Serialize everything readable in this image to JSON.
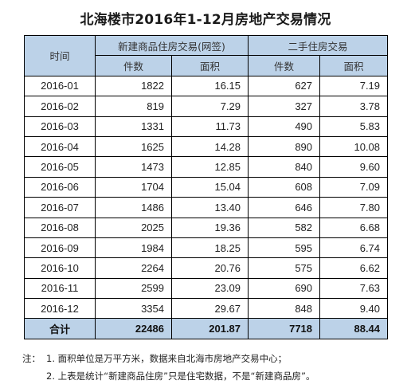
{
  "title": "北海楼市2016年1-12月房地产交易情况",
  "table": {
    "time_header": "时间",
    "new_group_header": "新建商品住房交易(网签)",
    "second_group_header": "二手住房交易",
    "sub_headers": [
      "件数",
      "面积",
      "件数",
      "面积"
    ],
    "rows": [
      {
        "date": "2016-01",
        "new_count": "1822",
        "new_area": "16.15",
        "sec_count": "627",
        "sec_area": "7.19"
      },
      {
        "date": "2016-02",
        "new_count": "819",
        "new_area": "7.29",
        "sec_count": "327",
        "sec_area": "3.78"
      },
      {
        "date": "2016-03",
        "new_count": "1331",
        "new_area": "11.73",
        "sec_count": "490",
        "sec_area": "5.83"
      },
      {
        "date": "2016-04",
        "new_count": "1625",
        "new_area": "14.28",
        "sec_count": "890",
        "sec_area": "10.08"
      },
      {
        "date": "2016-05",
        "new_count": "1473",
        "new_area": "12.85",
        "sec_count": "840",
        "sec_area": "9.60"
      },
      {
        "date": "2016-06",
        "new_count": "1704",
        "new_area": "15.04",
        "sec_count": "608",
        "sec_area": "7.09"
      },
      {
        "date": "2016-07",
        "new_count": "1486",
        "new_area": "13.40",
        "sec_count": "646",
        "sec_area": "7.80"
      },
      {
        "date": "2016-08",
        "new_count": "2025",
        "new_area": "19.36",
        "sec_count": "582",
        "sec_area": "6.68"
      },
      {
        "date": "2016-09",
        "new_count": "1984",
        "new_area": "18.25",
        "sec_count": "595",
        "sec_area": "6.74"
      },
      {
        "date": "2016-10",
        "new_count": "2264",
        "new_area": "20.76",
        "sec_count": "575",
        "sec_area": "6.62"
      },
      {
        "date": "2016-11",
        "new_count": "2599",
        "new_area": "23.09",
        "sec_count": "690",
        "sec_area": "7.63"
      },
      {
        "date": "2016-12",
        "new_count": "3354",
        "new_area": "29.67",
        "sec_count": "848",
        "sec_area": "9.40"
      }
    ],
    "total": {
      "label": "合计",
      "new_count": "22486",
      "new_area": "201.87",
      "sec_count": "7718",
      "sec_area": "88.44"
    }
  },
  "notes": {
    "prefix": "注：",
    "line1": "1. 面积单位是万平方米，数据来自北海市房地产交易中心；",
    "line2": "2. 上表是统计“新建商品住房”只是住宅数据，不是“新建商品房”。"
  },
  "colors": {
    "header_bg": "#bcd2e8",
    "border": "#000000"
  }
}
